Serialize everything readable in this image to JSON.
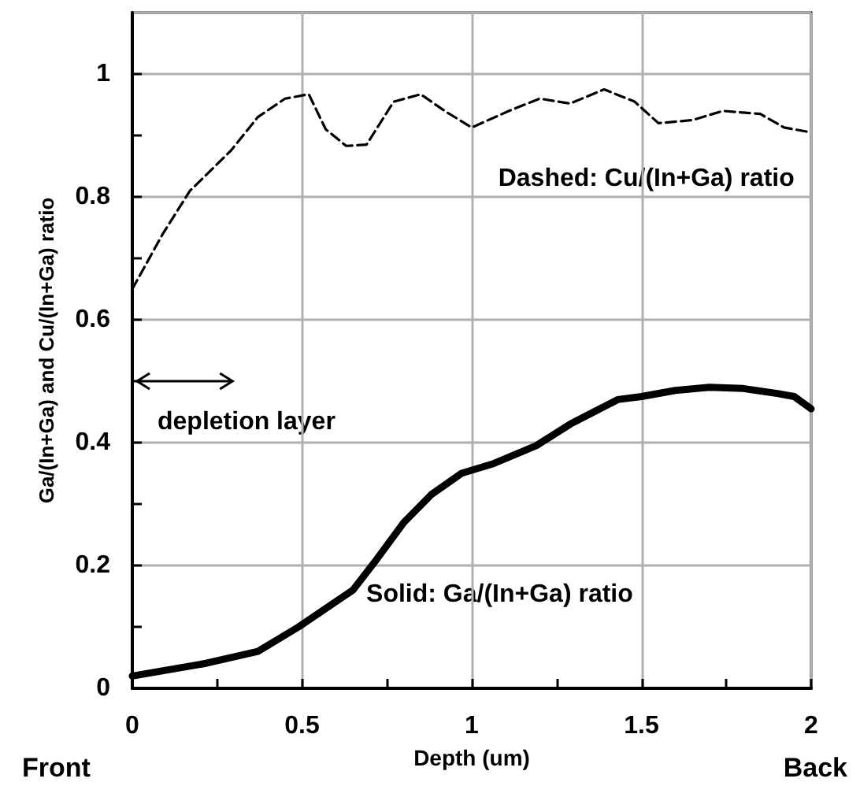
{
  "chart_data": {
    "type": "line",
    "xlabel": "Depth (um)",
    "ylabel": "Ga/(In+Ga) and Cu/(In+Ga) ratio",
    "annotations": [
      "Dashed: Cu/(In+Ga) ratio",
      "depletion layer",
      "Solid: Ga/(In+Ga) ratio",
      "Front",
      "Back"
    ],
    "series": [
      {
        "color": "#000000",
        "line_style": "dashed",
        "x": [
          0,
          0.09,
          0.17,
          0.29,
          0.37,
          0.45,
          0.52,
          0.57,
          0.63,
          0.69,
          0.77,
          0.85,
          0.92,
          1.0,
          1.11,
          1.2,
          1.29,
          1.39,
          1.48,
          1.55,
          1.65,
          1.74,
          1.85,
          1.92,
          2.0
        ],
        "values": [
          0.65,
          0.74,
          0.81,
          0.875,
          0.93,
          0.96,
          0.967,
          0.91,
          0.883,
          0.885,
          0.955,
          0.967,
          0.94,
          0.913,
          0.94,
          0.96,
          0.952,
          0.975,
          0.955,
          0.92,
          0.925,
          0.94,
          0.935,
          0.913,
          0.905
        ]
      },
      {
        "color": "#000000",
        "line_style": "solid",
        "x": [
          0,
          0.21,
          0.37,
          0.49,
          0.65,
          0.72,
          0.8,
          0.88,
          0.97,
          1.06,
          1.19,
          1.29,
          1.43,
          1.5,
          1.6,
          1.7,
          1.8,
          1.9,
          1.95,
          2.0
        ],
        "values": [
          0.02,
          0.04,
          0.06,
          0.1,
          0.16,
          0.21,
          0.27,
          0.315,
          0.35,
          0.365,
          0.395,
          0.43,
          0.47,
          0.475,
          0.485,
          0.49,
          0.488,
          0.48,
          0.475,
          0.455
        ]
      }
    ],
    "xlim": [
      0,
      2
    ],
    "xticks": [
      0,
      {
        "value": 0.25,
        "label": null
      },
      0.5,
      {
        "value": 0.75,
        "label": null
      },
      1,
      {
        "value": 1.25,
        "label": null
      },
      1.5,
      {
        "value": 1.75,
        "label": null
      },
      2
    ],
    "ylim": [
      0,
      1.1
    ],
    "yticks": [
      0,
      {
        "value": 0.1,
        "label": null
      },
      0.2,
      {
        "value": 0.3,
        "label": null
      },
      0.4,
      {
        "value": 0.5,
        "label": null
      },
      0.6,
      {
        "value": 0.7,
        "label": null
      },
      0.8,
      {
        "value": 0.9,
        "label": null
      },
      1
    ],
    "grid": true,
    "marker": "none"
  }
}
